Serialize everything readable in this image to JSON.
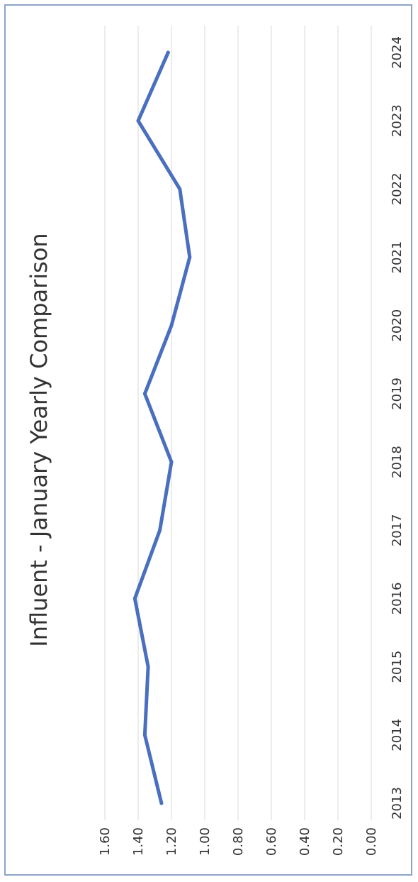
{
  "chart_data": {
    "type": "line",
    "title": "Influent - January Yearly Comparison",
    "xlabel": "",
    "ylabel": "",
    "categories": [
      "2013",
      "2014",
      "2015",
      "2016",
      "2017",
      "2018",
      "2019",
      "2020",
      "2021",
      "2022",
      "2023",
      "2024"
    ],
    "series": [
      {
        "values": [
          1.26,
          1.36,
          1.34,
          1.42,
          1.27,
          1.2,
          1.36,
          1.2,
          1.09,
          1.15,
          1.4,
          1.22
        ]
      }
    ],
    "ylim": [
      0,
      1.6
    ],
    "yticks": [
      "0.00",
      "0.20",
      "0.40",
      "0.60",
      "0.80",
      "1.00",
      "1.20",
      "1.40",
      "1.60"
    ],
    "orientation": "rotated 90 degrees counter-clockwise",
    "grid": true,
    "legend": "none",
    "colors": {
      "line": "#4a6fbf",
      "grid": "#d9d9d9",
      "text": "#333333",
      "border": "#8ea3c9"
    }
  }
}
